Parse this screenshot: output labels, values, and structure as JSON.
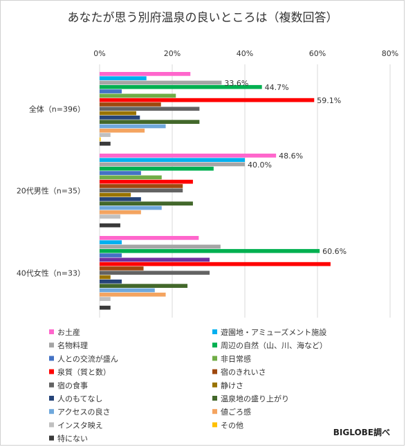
{
  "chart_data": {
    "type": "bar",
    "orientation": "horizontal",
    "title": "あなたが思う別府温泉の良いところは（複数回答）",
    "xlim": [
      0,
      80
    ],
    "x_ticks": [
      "0%",
      "20%",
      "40%",
      "60%",
      "80%"
    ],
    "grid": true,
    "legend_position": "bottom",
    "categories": [
      "全体（n=396）",
      "20代男性（n=35）",
      "40代女性（n=33）"
    ],
    "series": [
      {
        "name": "お土産",
        "color": "#FF66CC",
        "values": [
          25.0,
          48.6,
          27.3
        ]
      },
      {
        "name": "遊園地・アミューズメント施設",
        "color": "#00B0F0",
        "values": [
          12.9,
          40.0,
          6.1
        ]
      },
      {
        "name": "名物料理",
        "color": "#A5A5A5",
        "values": [
          33.6,
          40.0,
          33.3
        ]
      },
      {
        "name": "周辺の自然（山、川、海など）",
        "color": "#00B050",
        "values": [
          44.7,
          31.4,
          60.6
        ]
      },
      {
        "name": "人との交流が盛ん",
        "color": "#4472C4",
        "values": [
          6.1,
          11.4,
          6.1
        ]
      },
      {
        "name": "非日常感",
        "color": "#70AD47",
        "values": [
          21.0,
          17.1,
          0
        ]
      },
      {
        "name": "泉質（質と数）",
        "color": "#FF0000",
        "values": [
          59.1,
          25.7,
          63.6
        ]
      },
      {
        "name": "宿のきれいさ",
        "color": "#9E480E",
        "values": [
          16.9,
          22.9,
          12.1
        ]
      },
      {
        "name": "宿の食事",
        "color": "#636363",
        "values": [
          27.5,
          22.9,
          30.3
        ]
      },
      {
        "name": "静けさ",
        "color": "#997300",
        "values": [
          10.1,
          8.6,
          3.0
        ]
      },
      {
        "name": "人のもてなし",
        "color": "#264478",
        "values": [
          11.1,
          11.4,
          6.1
        ]
      },
      {
        "name": "温泉地の盛り上がり",
        "color": "#43682B",
        "values": [
          27.5,
          25.7,
          24.2
        ]
      },
      {
        "name": "アクセスの良さ",
        "color": "#6FA8DC",
        "values": [
          18.2,
          17.1,
          15.2
        ]
      },
      {
        "name": "値ごろ感",
        "color": "#F4A460",
        "values": [
          12.4,
          11.4,
          18.2
        ]
      },
      {
        "name": "インスタ映え",
        "color": "#C0C0C0",
        "values": [
          3.0,
          5.7,
          3.0
        ]
      },
      {
        "name": "その他",
        "color": "#FFC000",
        "values": [
          0.3,
          0,
          0
        ]
      },
      {
        "name": "特にない",
        "color": "#3A3A3A",
        "values": [
          3.0,
          5.7,
          3.0
        ]
      }
    ],
    "group_overrides": [
      {
        "category_index": 2,
        "series_index": 5,
        "color": "#7030A0",
        "value": 30.3
      }
    ],
    "data_labels": [
      {
        "category_index": 0,
        "series_index": 2,
        "text": "33.6%"
      },
      {
        "category_index": 0,
        "series_index": 3,
        "text": "44.7%"
      },
      {
        "category_index": 0,
        "series_index": 6,
        "text": "59.1%"
      },
      {
        "category_index": 1,
        "series_index": 0,
        "text": "48.6%"
      },
      {
        "category_index": 1,
        "series_index": 2,
        "text": "40.0%"
      },
      {
        "category_index": 2,
        "series_index": 3,
        "text": "60.6%"
      }
    ]
  },
  "source_note": "BIGLOBE調べ"
}
